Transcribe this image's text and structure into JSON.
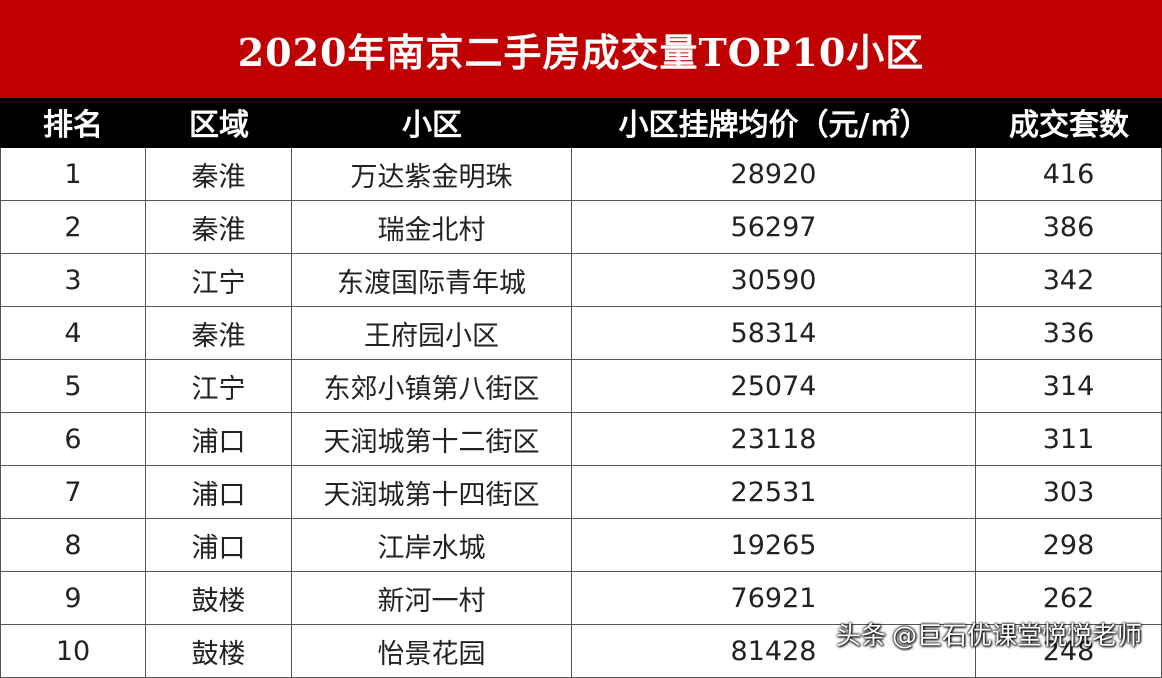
{
  "title": "2020年南京二手房成交量TOP10小区",
  "table": {
    "headers": [
      "排名",
      "区域",
      "小区",
      "小区挂牌均价（元/㎡）",
      "成交套数"
    ],
    "rows": [
      [
        "1",
        "秦淮",
        "万达紫金明珠",
        "28920",
        "416"
      ],
      [
        "2",
        "秦淮",
        "瑞金北村",
        "56297",
        "386"
      ],
      [
        "3",
        "江宁",
        "东渡国际青年城",
        "30590",
        "342"
      ],
      [
        "4",
        "秦淮",
        "王府园小区",
        "58314",
        "336"
      ],
      [
        "5",
        "江宁",
        "东郊小镇第八街区",
        "25074",
        "314"
      ],
      [
        "6",
        "浦口",
        "天润城第十二街区",
        "23118",
        "311"
      ],
      [
        "7",
        "浦口",
        "天润城第十四街区",
        "22531",
        "303"
      ],
      [
        "8",
        "浦口",
        "江岸水城",
        "19265",
        "298"
      ],
      [
        "9",
        "鼓楼",
        "新河一村",
        "76921",
        "262"
      ],
      [
        "10",
        "鼓楼",
        "怡景花园",
        "81428",
        "248"
      ]
    ]
  },
  "watermark": {
    "logo": "头条",
    "text": "@巨石优课堂悦悦老师"
  },
  "colors": {
    "title_bg": "#c00000",
    "header_bg": "#000000"
  }
}
